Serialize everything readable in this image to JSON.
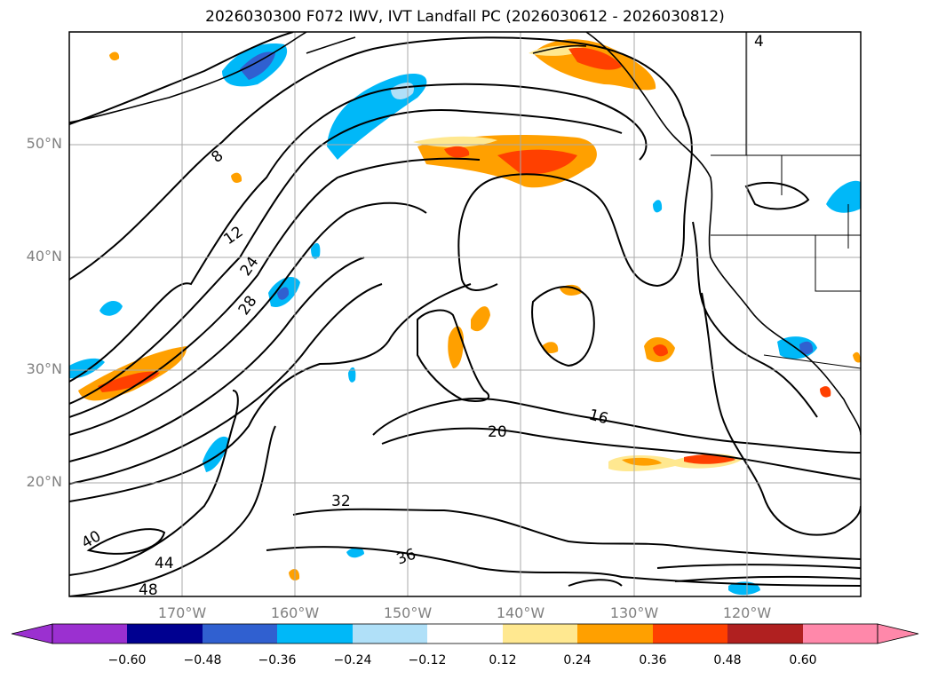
{
  "title": "2026030300 F072 IWV, IVT Landfall PC (2026030612 - 2026030812)",
  "map": {
    "lat_labels": [
      {
        "text": "50°N",
        "lat": 50
      },
      {
        "text": "40°N",
        "lat": 40
      },
      {
        "text": "30°N",
        "lat": 30
      },
      {
        "text": "20°N",
        "lat": 20
      }
    ],
    "lon_labels": [
      {
        "text": "170°W",
        "lon": -170
      },
      {
        "text": "160°W",
        "lon": -160
      },
      {
        "text": "150°W",
        "lon": -150
      },
      {
        "text": "140°W",
        "lon": -140
      },
      {
        "text": "130°W",
        "lon": -130
      },
      {
        "text": "120°W",
        "lon": -120
      }
    ],
    "contour_labels": [
      "4",
      "8",
      "12",
      "16",
      "20",
      "24",
      "28",
      "32",
      "36",
      "40",
      "44",
      "48"
    ],
    "coastline_color": "#000000",
    "gridline_color": "#aaaaaa"
  },
  "colorbar": {
    "ticks": [
      "−0.60",
      "−0.48",
      "−0.36",
      "−0.24",
      "−0.12",
      "0.12",
      "0.24",
      "0.36",
      "0.48",
      "0.60"
    ],
    "colors": [
      "#9b30d0",
      "#000090",
      "#3060d0",
      "#00b8f8",
      "#b0e0f8",
      "#ffffff",
      "#ffe890",
      "#ffa000",
      "#ff4000",
      "#b02020",
      "#ff88aa"
    ],
    "extend": "both"
  }
}
